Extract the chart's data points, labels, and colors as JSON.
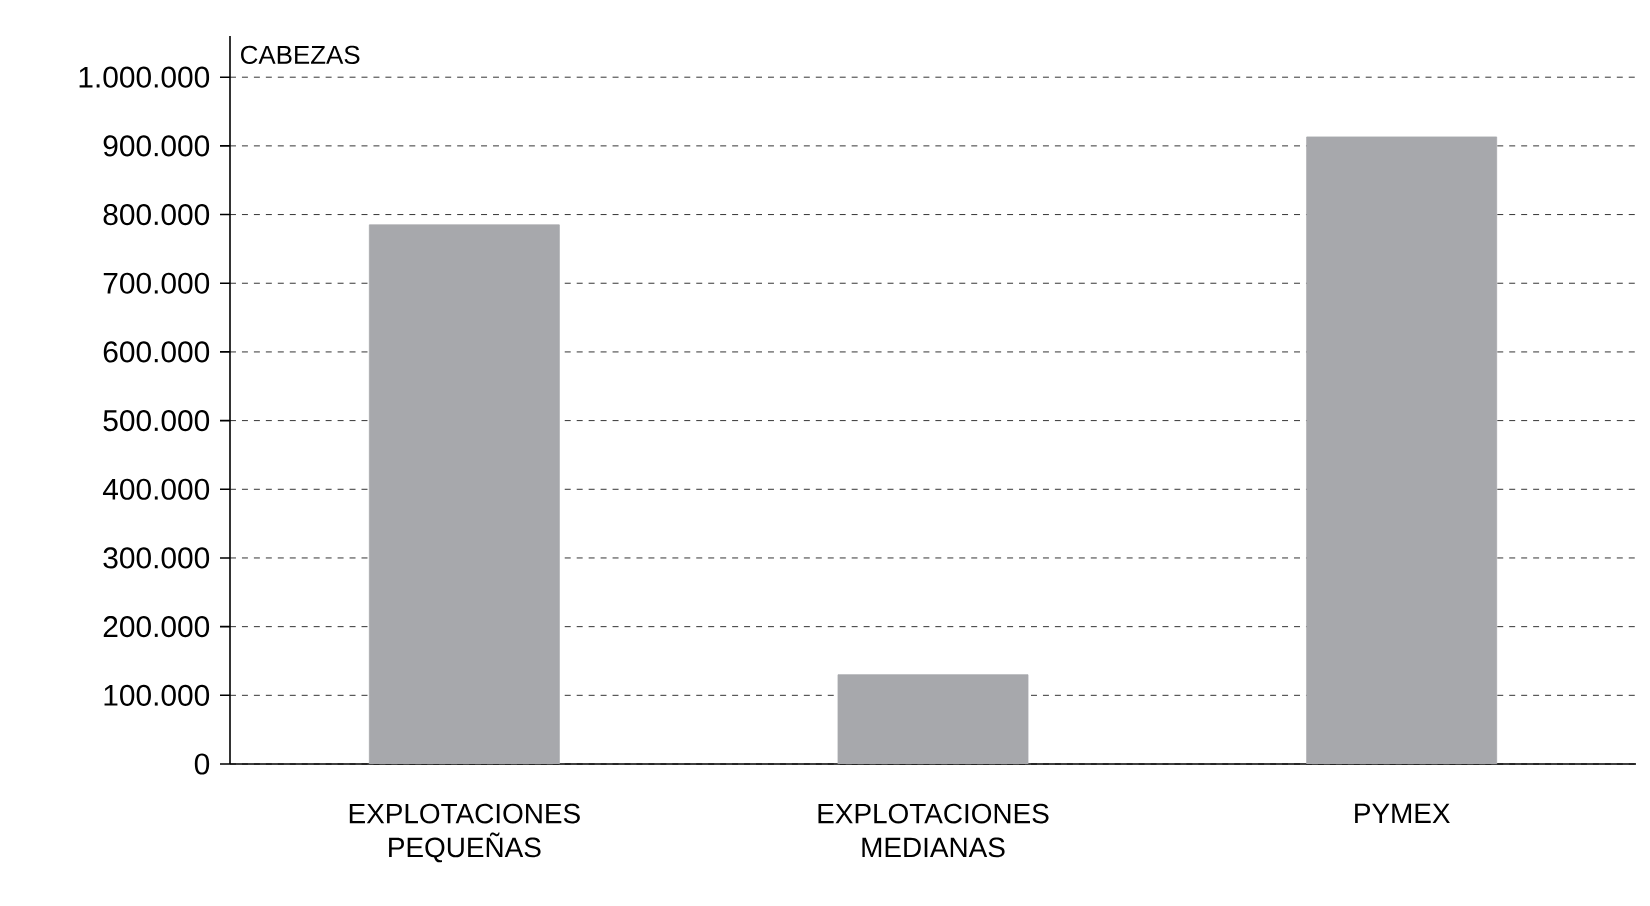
{
  "chart_data": {
    "type": "bar",
    "ylabel": "CABEZAS",
    "categories": [
      "EXPLOTACIONES PEQUEÑAS",
      "EXPLOTACIONES MEDIANAS",
      "PYMEX"
    ],
    "values": [
      785000,
      130000,
      913000
    ],
    "color": "#a7a8ac",
    "ylim": [
      0,
      1060000
    ],
    "yticks": [
      0,
      {
        "value": 100000,
        "label": "100.000"
      },
      {
        "value": 200000,
        "label": "200.000"
      },
      {
        "value": 300000,
        "label": "300.000"
      },
      {
        "value": 400000,
        "label": "400.000"
      },
      {
        "value": 500000,
        "label": "500.000"
      },
      {
        "value": 600000,
        "label": "600.000"
      },
      {
        "value": 700000,
        "label": "700.000"
      },
      {
        "value": 800000,
        "label": "800.000"
      },
      {
        "value": 900000,
        "label": "900.000"
      },
      {
        "value": 1000000,
        "label": "1.000.000"
      }
    ],
    "grid": "y"
  }
}
